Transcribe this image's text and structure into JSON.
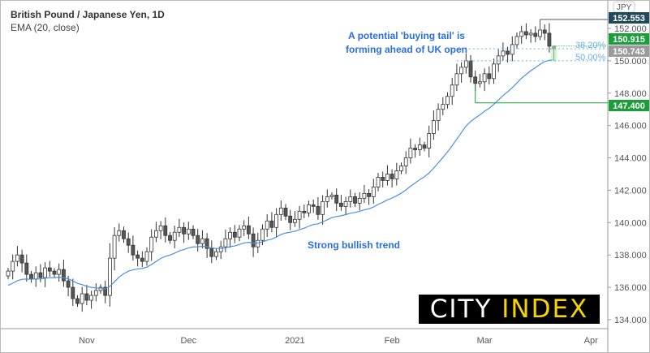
{
  "header": {
    "title": "British Pound / Japanese Yen, 1D",
    "indicator": "EMA (20, close)",
    "currency": "JPY"
  },
  "annotations": {
    "tail_line1": "A potential 'buying tail' is",
    "tail_line2": "forming ahead of UK open",
    "trend": "Strong bullish trend"
  },
  "logo": {
    "part1": "CITY",
    "part2": "INDEX"
  },
  "colors": {
    "up": "#ffffff",
    "down": "#555555",
    "ema": "#4a90e2",
    "green": "#1a9e3a",
    "dark": "#1e4a5a",
    "gray": "#9a9a9a",
    "fib": "#6ab0f0"
  },
  "chart_data": {
    "type": "candlestick",
    "title": "British Pound / Japanese Yen, 1D",
    "ylim": [
      133.5,
      153.5
    ],
    "y_ticks": [
      134,
      136,
      138,
      140,
      142,
      144,
      146,
      148,
      150,
      152
    ],
    "y_tick_labels": [
      "134.000",
      "136.000",
      "138.000",
      "140.000",
      "142.000",
      "144.000",
      "146.000",
      "148.000",
      "150.000",
      "152.000"
    ],
    "x_ticks": [
      {
        "label": "Nov",
        "index": 17
      },
      {
        "label": "Dec",
        "index": 39
      },
      {
        "label": "2021",
        "index": 62
      },
      {
        "label": "Feb",
        "index": 83
      },
      {
        "label": "Mar",
        "index": 103
      },
      {
        "label": "Apr",
        "index": 126
      }
    ],
    "closes": [
      137.0,
      137.6,
      138.0,
      137.5,
      136.8,
      136.5,
      136.9,
      136.6,
      137.2,
      137.0,
      136.8,
      137.1,
      136.4,
      136.0,
      135.3,
      135.0,
      135.6,
      135.2,
      135.5,
      135.8,
      136.0,
      135.5,
      137.8,
      139.2,
      139.5,
      139.0,
      138.6,
      138.0,
      137.8,
      137.6,
      138.2,
      139.1,
      139.5,
      139.8,
      139.2,
      138.9,
      139.4,
      139.7,
      139.3,
      139.6,
      139.2,
      138.7,
      139.0,
      138.4,
      137.9,
      138.2,
      138.5,
      139.0,
      139.4,
      139.1,
      139.6,
      139.8,
      139.3,
      138.5,
      138.9,
      139.6,
      140.1,
      139.7,
      140.5,
      140.9,
      140.4,
      140.0,
      140.2,
      140.7,
      140.6,
      141.1,
      141.0,
      140.5,
      141.3,
      141.6,
      141.7,
      141.2,
      141.0,
      141.3,
      141.6,
      141.2,
      141.5,
      141.8,
      141.6,
      142.2,
      142.8,
      142.6,
      143.0,
      142.7,
      143.2,
      143.5,
      144.0,
      144.6,
      144.5,
      144.8,
      144.6,
      145.5,
      146.3,
      147.0,
      147.3,
      147.8,
      148.5,
      149.2,
      149.6,
      150.0,
      149.0,
      148.6,
      148.7,
      149.2,
      148.9,
      149.8,
      150.3,
      150.6,
      150.4,
      151.0,
      151.5,
      151.8,
      151.6,
      151.7,
      151.5,
      151.9,
      151.7,
      150.9,
      150.74
    ],
    "ema_period": 20,
    "levels": [
      {
        "label": "152.553",
        "value": 152.553,
        "color": "#1e4a5a"
      },
      {
        "label": "150.915",
        "value": 150.915,
        "color": "#1a9e3a"
      },
      {
        "label": "150.743",
        "value": 150.743,
        "color": "#9a9a9a"
      },
      {
        "label": "147.400",
        "value": 147.4,
        "color": "#1a9e3a"
      }
    ],
    "fib": [
      {
        "label": "38.20%",
        "value": 150.743
      },
      {
        "label": "50.00%",
        "value": 150.0
      }
    ]
  }
}
